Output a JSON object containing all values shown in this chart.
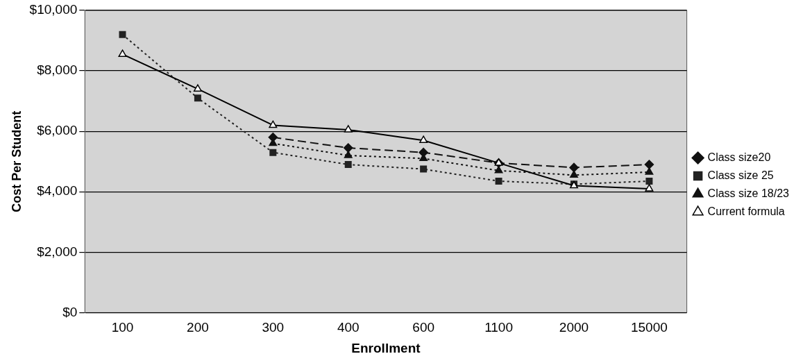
{
  "chart_data": {
    "type": "line",
    "xlabel": "Enrollment",
    "ylabel": "Cost Per Student",
    "categories": [
      "100",
      "200",
      "300",
      "400",
      "600",
      "1100",
      "2000",
      "15000"
    ],
    "ylim": [
      0,
      10000
    ],
    "yticks": [
      {
        "value": 0,
        "label": "$0"
      },
      {
        "value": 2000,
        "label": "$2,000"
      },
      {
        "value": 4000,
        "label": "$4,000"
      },
      {
        "value": 6000,
        "label": "$6,000"
      },
      {
        "value": 8000,
        "label": "$8,000"
      },
      {
        "value": 10000,
        "label": "$10,000"
      }
    ],
    "grid": "y",
    "legend": "right",
    "series": [
      {
        "name": "Class size20",
        "color": "#111111",
        "marker": "diamond",
        "line_style": "dashed",
        "values": [
          null,
          null,
          5800,
          5450,
          5300,
          4950,
          4800,
          4900
        ]
      },
      {
        "name": "Class size 25",
        "color": "#222222",
        "marker": "square",
        "line_style": "dotted",
        "values": [
          9200,
          7100,
          5300,
          4900,
          4750,
          4350,
          4250,
          4350
        ]
      },
      {
        "name": "Class size 18/23",
        "color": "#111111",
        "marker": "triangle",
        "line_style": "dotted",
        "values": [
          null,
          null,
          5600,
          5200,
          5100,
          4700,
          4550,
          4650
        ]
      },
      {
        "name": "Current formula",
        "color": "#000000",
        "marker": "triangle",
        "line_style": "solid",
        "values": [
          8550,
          7400,
          6200,
          6050,
          5700,
          4950,
          4200,
          4100
        ]
      }
    ]
  }
}
